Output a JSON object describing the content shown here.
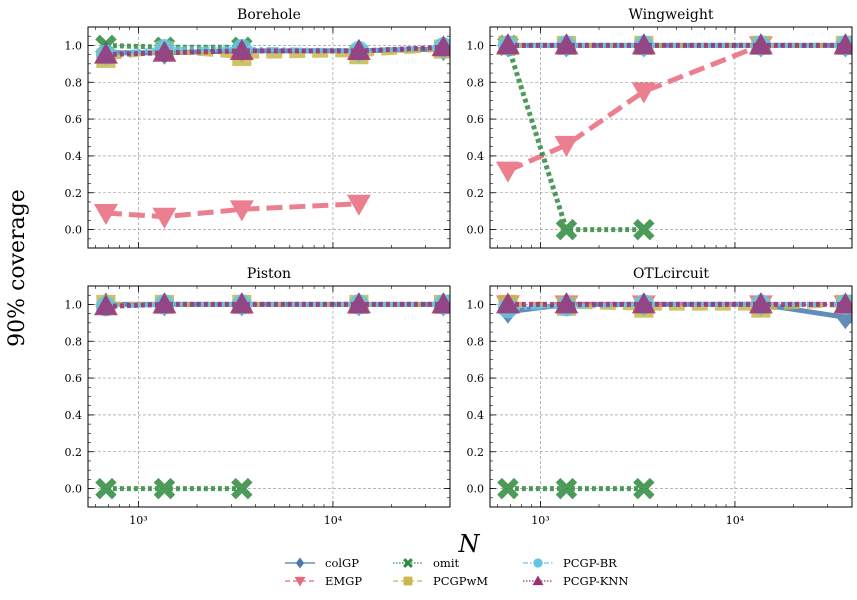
{
  "figure": {
    "ylabel": "90% coverage",
    "xlabel": "N"
  },
  "legend": {
    "placement": "bottom-center",
    "entries": [
      {
        "key": "colGP",
        "label": "colGP"
      },
      {
        "key": "EMGP",
        "label": "EMGP"
      },
      {
        "key": "omit",
        "label": "omit"
      },
      {
        "key": "PCGPwM",
        "label": "PCGPwM"
      },
      {
        "key": "PCGPBR",
        "label": "PCGP-BR"
      },
      {
        "key": "PCGPKNN",
        "label": "PCGP-KNN"
      }
    ]
  },
  "styles": {
    "colGP": {
      "color": "#4a78ad",
      "marker": "diamond",
      "dash": "solid"
    },
    "EMGP": {
      "color": "#e8697d",
      "marker": "triangle-down",
      "dash": "dashed"
    },
    "omit": {
      "color": "#2f8a3f",
      "marker": "x",
      "dash": "dotted"
    },
    "PCGPwM": {
      "color": "#c9b84c",
      "marker": "square",
      "dash": "dashed"
    },
    "PCGPBR": {
      "color": "#63c6e6",
      "marker": "circle",
      "dash": "dashdot"
    },
    "PCGPKNN": {
      "color": "#9a3077",
      "marker": "triangle-up",
      "dash": "dotted"
    }
  },
  "chart_data": [
    {
      "type": "line",
      "title": "Borehole",
      "xscale": "log",
      "xlim": [
        550,
        40000
      ],
      "ylim": [
        -0.1,
        1.1
      ],
      "grid": true,
      "xticks": [
        {
          "value": 1000,
          "label": "10³"
        },
        {
          "value": 10000,
          "label": "10⁴"
        }
      ],
      "yticks": [
        {
          "value": 0.0,
          "label": "0.0"
        },
        {
          "value": 0.2,
          "label": "0.2"
        },
        {
          "value": 0.4,
          "label": "0.4"
        },
        {
          "value": 0.6,
          "label": "0.6"
        },
        {
          "value": 0.8,
          "label": "0.8"
        },
        {
          "value": 1.0,
          "label": "1.0"
        }
      ],
      "series": [
        {
          "key": "colGP",
          "name": "colGP",
          "x": [
            680,
            1360,
            3400,
            13600,
            37000
          ],
          "y": [
            0.96,
            0.96,
            0.97,
            0.97,
            0.98
          ]
        },
        {
          "key": "EMGP",
          "name": "EMGP",
          "x": [
            680,
            1360,
            3400,
            13600
          ],
          "y": [
            0.09,
            0.07,
            0.11,
            0.14
          ]
        },
        {
          "key": "omit",
          "name": "omit",
          "x": [
            680,
            1360,
            3400
          ],
          "y": [
            1.0,
            0.99,
            0.99
          ]
        },
        {
          "key": "PCGPwM",
          "name": "PCGPwM",
          "x": [
            680,
            1360,
            3400,
            13600,
            37000
          ],
          "y": [
            0.93,
            0.97,
            0.94,
            0.95,
            0.98
          ]
        },
        {
          "key": "PCGPBR",
          "name": "PCGP-BR",
          "x": [
            680,
            1360,
            3400,
            13600,
            37000
          ],
          "y": [
            0.95,
            0.98,
            0.98,
            0.97,
            0.99
          ]
        },
        {
          "key": "PCGPKNN",
          "name": "PCGP-KNN",
          "x": [
            680,
            1360,
            3400,
            13600,
            37000
          ],
          "y": [
            0.95,
            0.96,
            0.97,
            0.97,
            0.99
          ]
        }
      ]
    },
    {
      "type": "line",
      "title": "Wingweight",
      "xscale": "log",
      "xlim": [
        550,
        40000
      ],
      "ylim": [
        -0.1,
        1.1
      ],
      "grid": true,
      "xticks": [
        {
          "value": 1000,
          "label": "10³"
        },
        {
          "value": 10000,
          "label": "10⁴"
        }
      ],
      "yticks": [
        {
          "value": 0.0,
          "label": "0.0"
        },
        {
          "value": 0.2,
          "label": "0.2"
        },
        {
          "value": 0.4,
          "label": "0.4"
        },
        {
          "value": 0.6,
          "label": "0.6"
        },
        {
          "value": 0.8,
          "label": "0.8"
        },
        {
          "value": 1.0,
          "label": "1.0"
        }
      ],
      "series": [
        {
          "key": "colGP",
          "name": "colGP",
          "x": [
            680,
            1360,
            3400,
            13600,
            37000
          ],
          "y": [
            1.0,
            1.0,
            1.0,
            1.0,
            1.0
          ]
        },
        {
          "key": "EMGP",
          "name": "EMGP",
          "x": [
            680,
            1360,
            3400,
            13600
          ],
          "y": [
            0.32,
            0.46,
            0.75,
            1.0
          ]
        },
        {
          "key": "omit",
          "name": "omit",
          "x": [
            680,
            1360,
            3400
          ],
          "y": [
            1.0,
            0.0,
            0.0
          ]
        },
        {
          "key": "PCGPwM",
          "name": "PCGPwM",
          "x": [
            680,
            1360,
            3400,
            13600,
            37000
          ],
          "y": [
            1.0,
            1.0,
            1.0,
            1.0,
            1.0
          ]
        },
        {
          "key": "PCGPBR",
          "name": "PCGP-BR",
          "x": [
            680,
            1360,
            3400,
            13600,
            37000
          ],
          "y": [
            1.0,
            1.0,
            1.0,
            1.0,
            1.0
          ]
        },
        {
          "key": "PCGPKNN",
          "name": "PCGP-KNN",
          "x": [
            680,
            1360,
            3400,
            13600,
            37000
          ],
          "y": [
            1.0,
            1.0,
            1.0,
            1.0,
            1.0
          ]
        }
      ]
    },
    {
      "type": "line",
      "title": "Piston",
      "xscale": "log",
      "xlim": [
        550,
        40000
      ],
      "ylim": [
        -0.1,
        1.1
      ],
      "grid": true,
      "xticks": [
        {
          "value": 1000,
          "label": "10³"
        },
        {
          "value": 10000,
          "label": "10⁴"
        }
      ],
      "yticks": [
        {
          "value": 0.0,
          "label": "0.0"
        },
        {
          "value": 0.2,
          "label": "0.2"
        },
        {
          "value": 0.4,
          "label": "0.4"
        },
        {
          "value": 0.6,
          "label": "0.6"
        },
        {
          "value": 0.8,
          "label": "0.8"
        },
        {
          "value": 1.0,
          "label": "1.0"
        }
      ],
      "series": [
        {
          "key": "colGP",
          "name": "colGP",
          "x": [
            680,
            1360,
            3400,
            13600,
            37000
          ],
          "y": [
            1.0,
            1.0,
            1.0,
            1.0,
            1.0
          ]
        },
        {
          "key": "omit",
          "name": "omit",
          "x": [
            680,
            1360,
            3400
          ],
          "y": [
            0.0,
            0.0,
            0.0
          ]
        },
        {
          "key": "PCGPwM",
          "name": "PCGPwM",
          "x": [
            680,
            1360,
            3400,
            13600,
            37000
          ],
          "y": [
            1.0,
            1.0,
            1.0,
            1.0,
            1.0
          ]
        },
        {
          "key": "PCGPBR",
          "name": "PCGP-BR",
          "x": [
            680,
            1360,
            3400,
            13600,
            37000
          ],
          "y": [
            0.99,
            1.0,
            1.0,
            1.0,
            1.0
          ]
        },
        {
          "key": "PCGPKNN",
          "name": "PCGP-KNN",
          "x": [
            680,
            1360,
            3400,
            13600,
            37000
          ],
          "y": [
            0.99,
            1.0,
            1.0,
            1.0,
            1.0
          ]
        }
      ]
    },
    {
      "type": "line",
      "title": "OTLcircuit",
      "xscale": "log",
      "xlim": [
        550,
        40000
      ],
      "ylim": [
        -0.1,
        1.1
      ],
      "grid": true,
      "xticks": [
        {
          "value": 1000,
          "label": "10³"
        },
        {
          "value": 10000,
          "label": "10⁴"
        }
      ],
      "yticks": [
        {
          "value": 0.0,
          "label": "0.0"
        },
        {
          "value": 0.2,
          "label": "0.2"
        },
        {
          "value": 0.4,
          "label": "0.4"
        },
        {
          "value": 0.6,
          "label": "0.6"
        },
        {
          "value": 0.8,
          "label": "0.8"
        },
        {
          "value": 1.0,
          "label": "1.0"
        }
      ],
      "series": [
        {
          "key": "colGP",
          "name": "colGP",
          "x": [
            680,
            1360,
            3400,
            13600,
            37000
          ],
          "y": [
            0.96,
            1.0,
            1.0,
            1.0,
            0.93
          ]
        },
        {
          "key": "EMGP",
          "name": "EMGP",
          "x": [
            680,
            1360,
            3400,
            13600,
            37000
          ],
          "y": [
            1.0,
            1.0,
            1.0,
            1.0,
            1.0
          ]
        },
        {
          "key": "omit",
          "name": "omit",
          "x": [
            680,
            1360,
            3400
          ],
          "y": [
            0.0,
            0.0,
            0.0
          ]
        },
        {
          "key": "PCGPwM",
          "name": "PCGPwM",
          "x": [
            680,
            1360,
            3400,
            13600,
            37000
          ],
          "y": [
            1.0,
            0.99,
            0.98,
            0.98,
            1.0
          ]
        },
        {
          "key": "PCGPBR",
          "name": "PCGP-BR",
          "x": [
            680,
            1360,
            3400,
            13600,
            37000
          ],
          "y": [
            0.98,
            0.99,
            1.0,
            1.0,
            1.0
          ]
        },
        {
          "key": "PCGPKNN",
          "name": "PCGP-KNN",
          "x": [
            680,
            1360,
            3400,
            13600,
            37000
          ],
          "y": [
            1.0,
            1.0,
            1.0,
            1.0,
            1.0
          ]
        }
      ]
    }
  ]
}
